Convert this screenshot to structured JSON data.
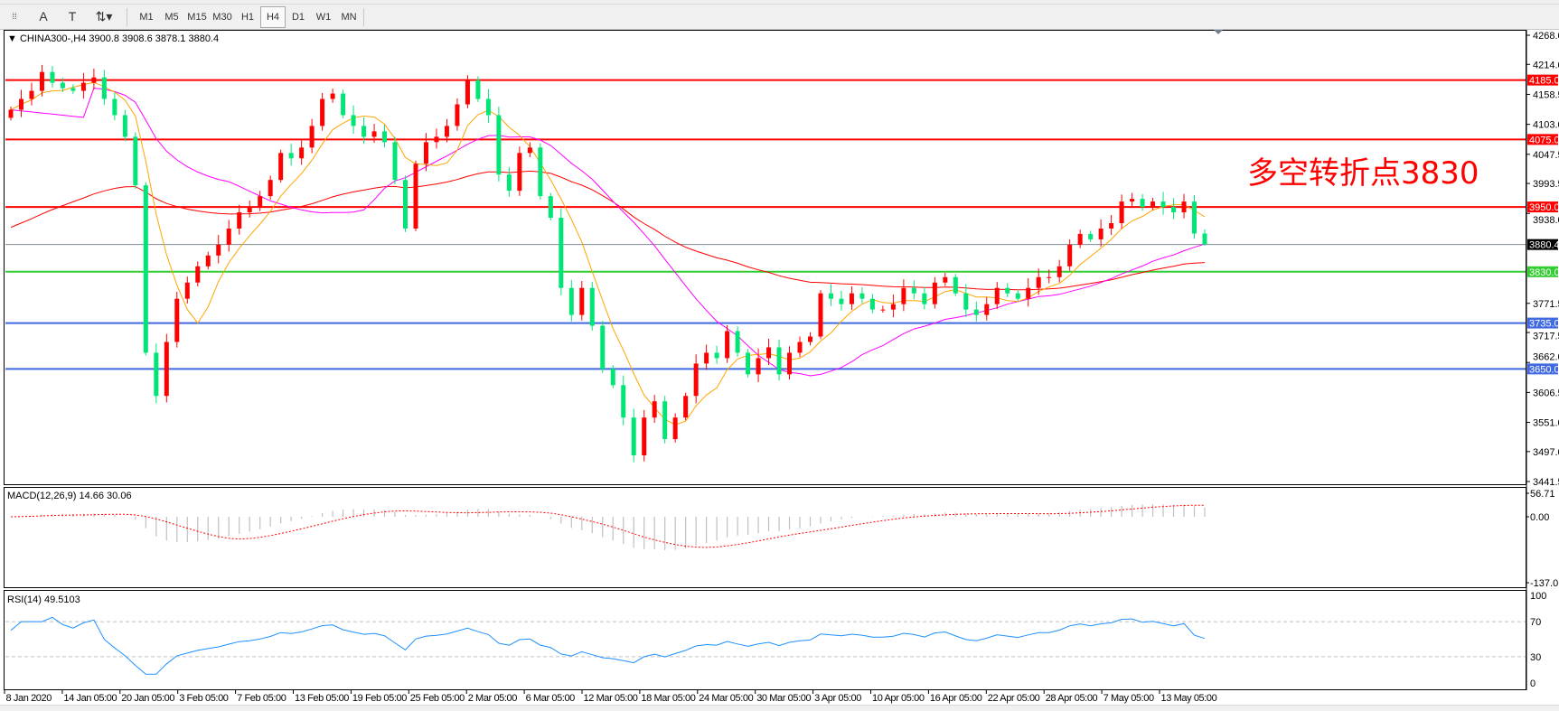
{
  "toolbar": {
    "tools": [
      {
        "name": "grid-properties-icon",
        "glyph": "⁞⁞"
      },
      {
        "name": "text-tool-icon",
        "glyph": "A"
      },
      {
        "name": "text-label-icon",
        "glyph": "T"
      },
      {
        "name": "arrows-tool-icon",
        "glyph": "⇅▾"
      }
    ],
    "timeframes": [
      "M1",
      "M5",
      "M15",
      "M30",
      "H1",
      "H4",
      "D1",
      "W1",
      "MN"
    ],
    "active_timeframe": "H4"
  },
  "chart": {
    "header": "▼ CHINA300-,H4  3900.8 3908.6 3878.1 3880.4",
    "annotation": "多空转折点3830",
    "colors": {
      "bull": "#ff0000",
      "bear": "#00e676",
      "ma_fast": "#ffa500",
      "ma_mid": "#ff00ff",
      "ma_slow": "#ff0000",
      "rsi": "#1e90ff",
      "macd_signal": "#ff0000",
      "macd_hist": "#c0c0c0"
    }
  },
  "chart_data": {
    "type": "candlestick",
    "symbol": "CHINA300-",
    "timeframe": "H4",
    "last_ohlc": {
      "open": 3900.8,
      "high": 3908.6,
      "low": 3878.1,
      "close": 3880.4
    },
    "closes": [
      4130,
      4150,
      4165,
      4200,
      4180,
      4170,
      4165,
      4180,
      4190,
      4150,
      4120,
      4080,
      3990,
      3680,
      3600,
      3700,
      3780,
      3810,
      3840,
      3860,
      3880,
      3910,
      3940,
      3950,
      3970,
      4000,
      4050,
      4040,
      4060,
      4100,
      4150,
      4160,
      4120,
      4100,
      4080,
      4090,
      4070,
      4000,
      3910,
      4030,
      4070,
      4080,
      4100,
      4140,
      4185,
      4150,
      4120,
      4010,
      3980,
      4050,
      4060,
      3970,
      3930,
      3800,
      3750,
      3800,
      3730,
      3650,
      3620,
      3560,
      3490,
      3560,
      3590,
      3520,
      3560,
      3600,
      3660,
      3680,
      3670,
      3720,
      3680,
      3640,
      3670,
      3690,
      3640,
      3680,
      3700,
      3710,
      3790,
      3780,
      3770,
      3790,
      3780,
      3760,
      3760,
      3770,
      3800,
      3790,
      3770,
      3810,
      3820,
      3790,
      3760,
      3750,
      3770,
      3800,
      3790,
      3780,
      3800,
      3820,
      3820,
      3840,
      3880,
      3900,
      3890,
      3910,
      3920,
      3960,
      3965,
      3950,
      3960,
      3950,
      3940,
      3960,
      3900.8,
      3880.4
    ],
    "price_axis": {
      "ticks": [
        "4268.0",
        "4214.0",
        "4158.5",
        "4103.0",
        "4047.5",
        "3993.5",
        "3938.0",
        "3771.5",
        "3717.5",
        "3662.0",
        "3606.5",
        "3551.0",
        "3497.0",
        "3441.5"
      ],
      "range": [
        3441.5,
        4268.0
      ]
    },
    "levels": [
      {
        "price": 4185.0,
        "label": "4185.0",
        "color": "#ff0000"
      },
      {
        "price": 4075.0,
        "label": "4075.0",
        "color": "#ff0000"
      },
      {
        "price": 3950.0,
        "label": "3950.0",
        "color": "#ff0000"
      },
      {
        "price": 3880.4,
        "label": "3880.4",
        "color": "#808890",
        "current": true
      },
      {
        "price": 3830.0,
        "label": "3830.0",
        "color": "#32cd32"
      },
      {
        "price": 3735.0,
        "label": "3735.0",
        "color": "#4169e1"
      },
      {
        "price": 3650.0,
        "label": "3650.0",
        "color": "#4169e1"
      }
    ],
    "x_labels": [
      "8 Jan 2020",
      "14 Jan 05:00",
      "20 Jan 05:00",
      "3 Feb 05:00",
      "7 Feb 05:00",
      "13 Feb 05:00",
      "19 Feb 05:00",
      "25 Feb 05:00",
      "2 Mar 05:00",
      "6 Mar 05:00",
      "12 Mar 05:00",
      "18 Mar 05:00",
      "24 Mar 05:00",
      "30 Mar 05:00",
      "3 Apr 05:00",
      "10 Apr 05:00",
      "16 Apr 05:00",
      "22 Apr 05:00",
      "28 Apr 05:00",
      "7 May 05:00",
      "13 May 05:00"
    ],
    "macd": {
      "label": "MACD(12,26,9) 14.66 30.06",
      "axis": [
        "56.71",
        "0.00",
        "-137.01"
      ],
      "range": [
        -137.01,
        56.71
      ]
    },
    "rsi": {
      "label": "RSI(14) 49.5103",
      "axis": [
        "100",
        "70",
        "30",
        "0"
      ],
      "levels": [
        70,
        30
      ]
    }
  }
}
